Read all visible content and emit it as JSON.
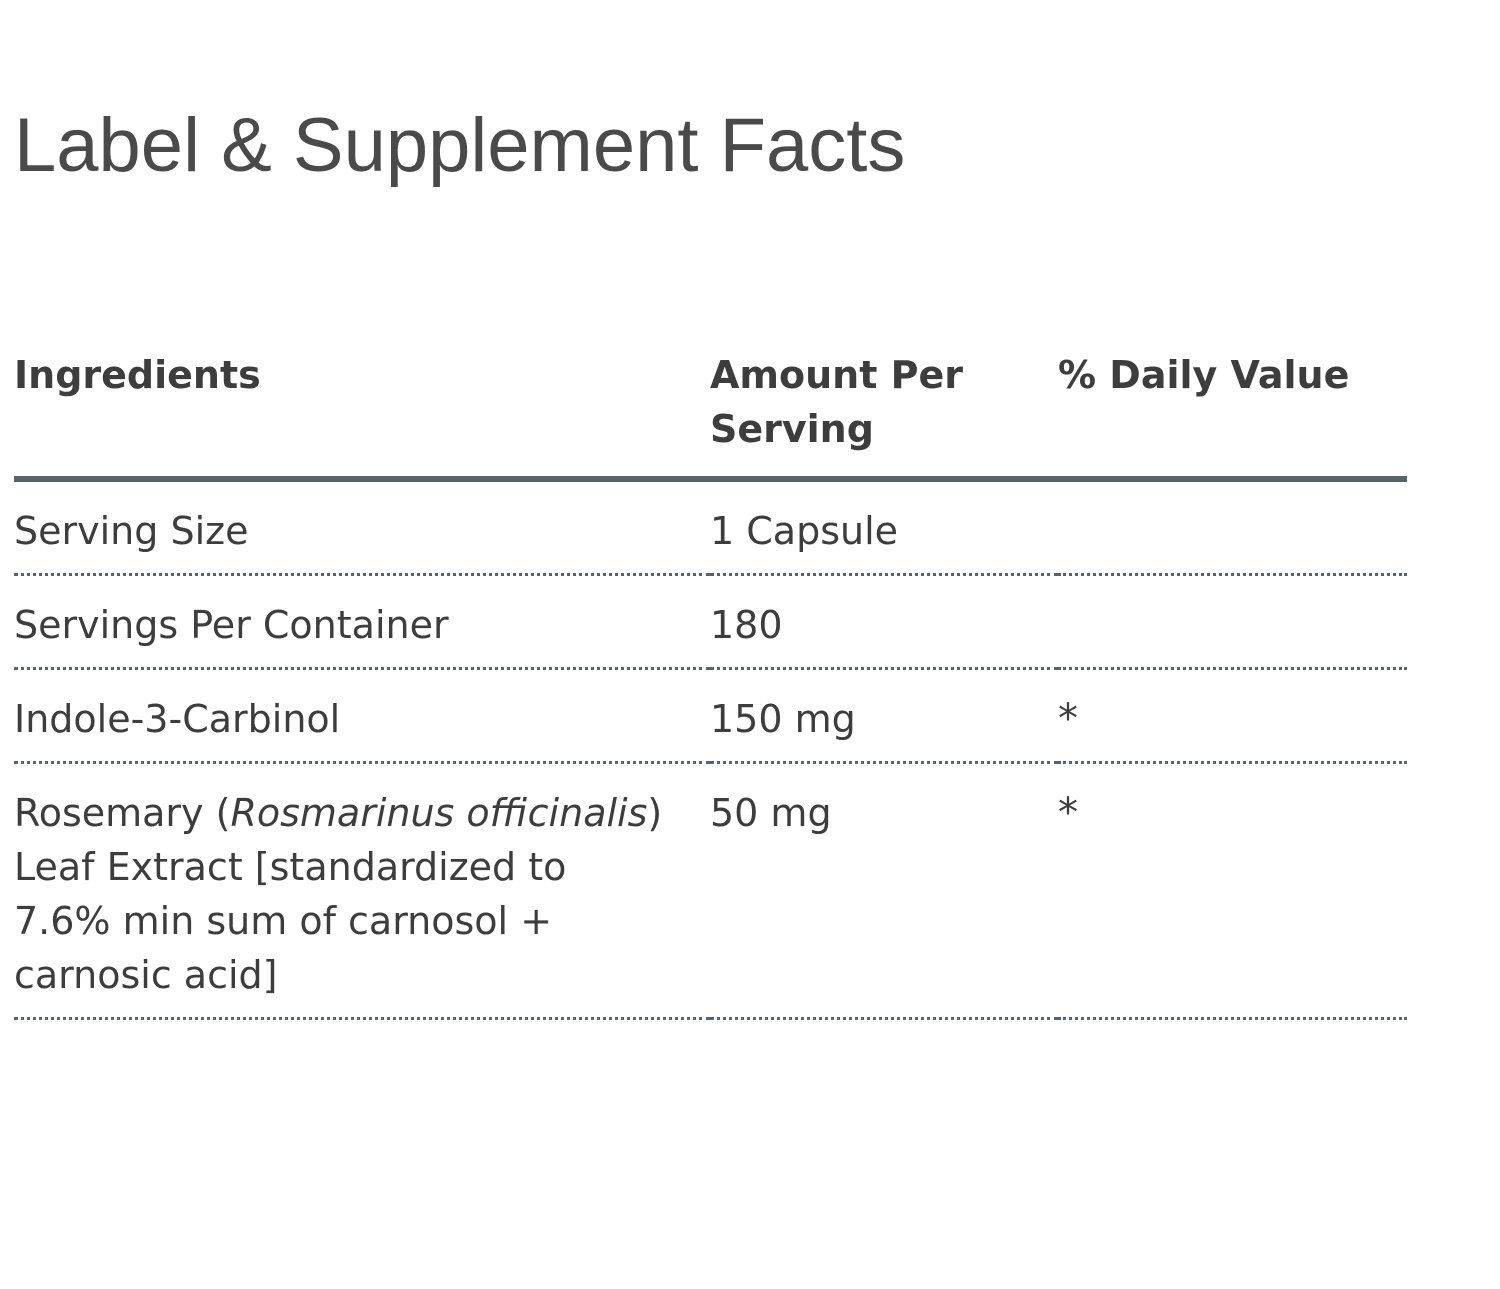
{
  "page": {
    "title": "Label & Supplement Facts"
  },
  "table": {
    "headers": {
      "ingredients": "Ingredients",
      "amount": "Amount Per Serving",
      "daily_value": "% Daily Value"
    },
    "rows": [
      {
        "name": "Serving Size",
        "amount": "1 Capsule",
        "daily_value": ""
      },
      {
        "name": "Servings Per Container",
        "amount": "180",
        "daily_value": ""
      },
      {
        "name": "Indole-3-Carbinol",
        "amount": "150 mg",
        "daily_value": "*"
      },
      {
        "name_prefix": "Rosemary (",
        "name_italic": "Rosmarinus officinalis",
        "name_suffix": ") Leaf Extract [standardized to 7.6% min sum of carnosol + carnosic acid]",
        "amount": "50 mg",
        "daily_value": "*"
      }
    ]
  },
  "colors": {
    "text": "#3d3d3d",
    "rule": "#5b626a",
    "background": "#ffffff"
  }
}
